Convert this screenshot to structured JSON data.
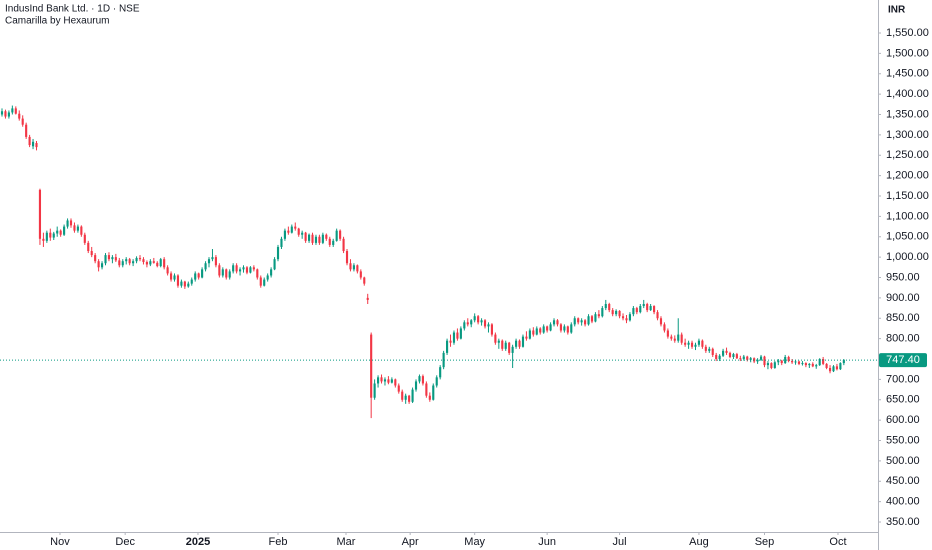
{
  "chart_data": {
    "type": "candlestick",
    "title": "IndusInd Bank Ltd. · 1D · NSE",
    "subtitle": "Camarilla by Hexaurum",
    "currency": "INR",
    "up_color": "#089981",
    "down_color": "#f23645",
    "last_price": {
      "value": 747.4,
      "label": "747.40"
    },
    "ylim": [
      325.5,
      1631
    ],
    "yticks": [
      {
        "value": 350,
        "label": "350.00"
      },
      {
        "value": 400,
        "label": "400.00"
      },
      {
        "value": 450,
        "label": "450.00"
      },
      {
        "value": 500,
        "label": "500.00"
      },
      {
        "value": 550,
        "label": "550.00"
      },
      {
        "value": 600,
        "label": "600.00"
      },
      {
        "value": 650,
        "label": "650.00"
      },
      {
        "value": 700,
        "label": "700.00"
      },
      {
        "value": 750,
        "label": "750.00"
      },
      {
        "value": 800,
        "label": "800.00"
      },
      {
        "value": 850,
        "label": "850.00"
      },
      {
        "value": 900,
        "label": "900.00"
      },
      {
        "value": 950,
        "label": "950.00"
      },
      {
        "value": 1000,
        "label": "1,000.00"
      },
      {
        "value": 1050,
        "label": "1,050.00"
      },
      {
        "value": 1100,
        "label": "1,100.00"
      },
      {
        "value": 1150,
        "label": "1,150.00"
      },
      {
        "value": 1200,
        "label": "1,200.00"
      },
      {
        "value": 1250,
        "label": "1,250.00"
      },
      {
        "value": 1300,
        "label": "1,300.00"
      },
      {
        "value": 1350,
        "label": "1,350.00"
      },
      {
        "value": 1400,
        "label": "1,400.00"
      },
      {
        "value": 1450,
        "label": "1,450.00"
      },
      {
        "value": 1500,
        "label": "1,500.00"
      },
      {
        "value": 1550,
        "label": "1,550.00"
      }
    ],
    "xlim": [
      -0.58,
      253.9
    ],
    "xticks": [
      {
        "value": 16.8,
        "label": "Nov"
      },
      {
        "value": 35.7,
        "label": "Dec"
      },
      {
        "value": 56.8,
        "label": "2025"
      },
      {
        "value": 80,
        "label": "Feb"
      },
      {
        "value": 99.7,
        "label": "Mar"
      },
      {
        "value": 118.3,
        "label": "Apr"
      },
      {
        "value": 137,
        "label": "May"
      },
      {
        "value": 158,
        "label": "Jun"
      },
      {
        "value": 179,
        "label": "Jul"
      },
      {
        "value": 202,
        "label": "Aug"
      },
      {
        "value": 221,
        "label": "Sep"
      },
      {
        "value": 242.3,
        "label": "Oct"
      }
    ],
    "ohlc": [
      [
        1350,
        1365,
        1345,
        1358
      ],
      [
        1358,
        1362,
        1340,
        1345
      ],
      [
        1345,
        1360,
        1340,
        1355
      ],
      [
        1355,
        1372,
        1350,
        1365
      ],
      [
        1365,
        1370,
        1350,
        1352
      ],
      [
        1352,
        1360,
        1335,
        1340
      ],
      [
        1340,
        1348,
        1320,
        1325
      ],
      [
        1325,
        1330,
        1290,
        1295
      ],
      [
        1295,
        1300,
        1270,
        1275
      ],
      [
        1272,
        1290,
        1265,
        1283
      ],
      [
        1280,
        1285,
        1262,
        1270
      ],
      [
        1165,
        1168,
        1030,
        1045
      ],
      [
        1045,
        1060,
        1025,
        1040
      ],
      [
        1040,
        1065,
        1035,
        1060
      ],
      [
        1060,
        1070,
        1040,
        1048
      ],
      [
        1048,
        1062,
        1042,
        1058
      ],
      [
        1058,
        1075,
        1050,
        1065
      ],
      [
        1065,
        1068,
        1050,
        1055
      ],
      [
        1055,
        1080,
        1052,
        1075
      ],
      [
        1075,
        1095,
        1070,
        1090
      ],
      [
        1090,
        1095,
        1072,
        1078
      ],
      [
        1078,
        1085,
        1060,
        1065
      ],
      [
        1065,
        1080,
        1060,
        1075
      ],
      [
        1075,
        1078,
        1050,
        1055
      ],
      [
        1055,
        1060,
        1030,
        1035
      ],
      [
        1035,
        1040,
        1010,
        1015
      ],
      [
        1015,
        1025,
        1000,
        1005
      ],
      [
        1005,
        1010,
        985,
        990
      ],
      [
        990,
        995,
        965,
        975
      ],
      [
        975,
        990,
        970,
        985
      ],
      [
        985,
        1010,
        980,
        1005
      ],
      [
        1005,
        1012,
        990,
        995
      ],
      [
        995,
        1005,
        985,
        1000
      ],
      [
        1000,
        1008,
        988,
        992
      ],
      [
        992,
        998,
        975,
        980
      ],
      [
        980,
        995,
        975,
        990
      ],
      [
        990,
        1000,
        982,
        995
      ],
      [
        995,
        998,
        980,
        985
      ],
      [
        985,
        995,
        978,
        990
      ],
      [
        990,
        1002,
        985,
        998
      ],
      [
        998,
        1005,
        990,
        995
      ],
      [
        995,
        1000,
        982,
        988
      ],
      [
        988,
        992,
        975,
        982
      ],
      [
        982,
        995,
        978,
        990
      ],
      [
        990,
        998,
        984,
        986
      ],
      [
        986,
        990,
        975,
        978
      ],
      [
        978,
        998,
        975,
        995
      ],
      [
        995,
        1000,
        970,
        975
      ],
      [
        975,
        980,
        955,
        960
      ],
      [
        960,
        965,
        940,
        945
      ],
      [
        945,
        960,
        940,
        955
      ],
      [
        955,
        958,
        925,
        930
      ],
      [
        930,
        945,
        925,
        940
      ],
      [
        940,
        942,
        922,
        928
      ],
      [
        928,
        940,
        925,
        935
      ],
      [
        935,
        950,
        930,
        945
      ],
      [
        945,
        965,
        940,
        960
      ],
      [
        960,
        962,
        945,
        950
      ],
      [
        950,
        975,
        948,
        970
      ],
      [
        970,
        990,
        965,
        985
      ],
      [
        985,
        1000,
        975,
        995
      ],
      [
        995,
        1020,
        990,
        1000
      ],
      [
        1000,
        1005,
        975,
        980
      ],
      [
        980,
        985,
        950,
        955
      ],
      [
        955,
        975,
        950,
        970
      ],
      [
        970,
        972,
        945,
        950
      ],
      [
        950,
        970,
        945,
        965
      ],
      [
        965,
        985,
        960,
        980
      ],
      [
        980,
        985,
        960,
        965
      ],
      [
        965,
        975,
        955,
        970
      ],
      [
        970,
        980,
        962,
        975
      ],
      [
        975,
        978,
        958,
        962
      ],
      [
        962,
        978,
        960,
        975
      ],
      [
        975,
        980,
        965,
        970
      ],
      [
        970,
        972,
        945,
        950
      ],
      [
        950,
        955,
        925,
        930
      ],
      [
        930,
        950,
        928,
        945
      ],
      [
        945,
        960,
        940,
        955
      ],
      [
        955,
        975,
        950,
        970
      ],
      [
        970,
        1000,
        968,
        995
      ],
      [
        995,
        1030,
        990,
        1025
      ],
      [
        1025,
        1050,
        1020,
        1045
      ],
      [
        1045,
        1070,
        1040,
        1065
      ],
      [
        1065,
        1075,
        1055,
        1060
      ],
      [
        1060,
        1080,
        1058,
        1075
      ],
      [
        1075,
        1085,
        1065,
        1070
      ],
      [
        1070,
        1072,
        1050,
        1055
      ],
      [
        1055,
        1065,
        1045,
        1060
      ],
      [
        1060,
        1062,
        1035,
        1040
      ],
      [
        1040,
        1058,
        1035,
        1055
      ],
      [
        1055,
        1060,
        1030,
        1035
      ],
      [
        1035,
        1055,
        1030,
        1050
      ],
      [
        1050,
        1055,
        1030,
        1035
      ],
      [
        1035,
        1060,
        1032,
        1055
      ],
      [
        1055,
        1058,
        1040,
        1045
      ],
      [
        1045,
        1050,
        1025,
        1030
      ],
      [
        1030,
        1045,
        1025,
        1040
      ],
      [
        1040,
        1070,
        1038,
        1065
      ],
      [
        1065,
        1068,
        1040,
        1045
      ],
      [
        1045,
        1050,
        1010,
        1015
      ],
      [
        1015,
        1020,
        980,
        985
      ],
      [
        985,
        995,
        965,
        970
      ],
      [
        970,
        985,
        965,
        980
      ],
      [
        980,
        982,
        960,
        965
      ],
      [
        965,
        970,
        945,
        950
      ],
      [
        950,
        952,
        930,
        935
      ],
      [
        900,
        910,
        885,
        895
      ],
      [
        810,
        815,
        605,
        655
      ],
      [
        655,
        700,
        650,
        690
      ],
      [
        690,
        710,
        680,
        705
      ],
      [
        705,
        712,
        690,
        695
      ],
      [
        695,
        705,
        685,
        700
      ],
      [
        700,
        708,
        688,
        692
      ],
      [
        692,
        705,
        690,
        700
      ],
      [
        700,
        702,
        680,
        685
      ],
      [
        685,
        690,
        665,
        670
      ],
      [
        670,
        675,
        645,
        650
      ],
      [
        650,
        665,
        640,
        660
      ],
      [
        660,
        662,
        640,
        645
      ],
      [
        645,
        680,
        642,
        675
      ],
      [
        675,
        700,
        670,
        695
      ],
      [
        695,
        712,
        690,
        708
      ],
      [
        708,
        712,
        685,
        690
      ],
      [
        690,
        695,
        655,
        660
      ],
      [
        660,
        668,
        645,
        650
      ],
      [
        650,
        690,
        648,
        685
      ],
      [
        685,
        710,
        680,
        705
      ],
      [
        705,
        735,
        700,
        730
      ],
      [
        730,
        770,
        725,
        765
      ],
      [
        765,
        800,
        760,
        795
      ],
      [
        795,
        810,
        780,
        790
      ],
      [
        790,
        820,
        785,
        815
      ],
      [
        815,
        825,
        795,
        800
      ],
      [
        800,
        830,
        798,
        825
      ],
      [
        825,
        845,
        820,
        840
      ],
      [
        840,
        850,
        830,
        835
      ],
      [
        835,
        848,
        828,
        845
      ],
      [
        845,
        862,
        840,
        855
      ],
      [
        855,
        858,
        835,
        840
      ],
      [
        840,
        850,
        832,
        845
      ],
      [
        845,
        848,
        825,
        830
      ],
      [
        830,
        840,
        815,
        835
      ],
      [
        835,
        838,
        805,
        810
      ],
      [
        810,
        815,
        785,
        790
      ],
      [
        790,
        800,
        775,
        795
      ],
      [
        795,
        798,
        770,
        775
      ],
      [
        775,
        795,
        770,
        790
      ],
      [
        790,
        792,
        760,
        765
      ],
      [
        765,
        785,
        728,
        780
      ],
      [
        780,
        800,
        775,
        795
      ],
      [
        795,
        798,
        775,
        780
      ],
      [
        780,
        810,
        778,
        805
      ],
      [
        805,
        818,
        795,
        800
      ],
      [
        800,
        825,
        798,
        820
      ],
      [
        820,
        828,
        805,
        810
      ],
      [
        810,
        830,
        808,
        825
      ],
      [
        825,
        828,
        810,
        815
      ],
      [
        815,
        835,
        812,
        830
      ],
      [
        830,
        832,
        815,
        820
      ],
      [
        820,
        840,
        818,
        835
      ],
      [
        835,
        850,
        830,
        845
      ],
      [
        845,
        848,
        830,
        835
      ],
      [
        835,
        838,
        815,
        820
      ],
      [
        820,
        835,
        815,
        830
      ],
      [
        830,
        832,
        810,
        815
      ],
      [
        815,
        840,
        812,
        835
      ],
      [
        835,
        855,
        830,
        850
      ],
      [
        850,
        852,
        835,
        840
      ],
      [
        840,
        850,
        832,
        845
      ],
      [
        845,
        848,
        830,
        835
      ],
      [
        835,
        860,
        832,
        855
      ],
      [
        855,
        858,
        838,
        842
      ],
      [
        842,
        865,
        840,
        860
      ],
      [
        860,
        870,
        850,
        855
      ],
      [
        855,
        880,
        852,
        875
      ],
      [
        875,
        895,
        870,
        885
      ],
      [
        885,
        888,
        865,
        870
      ],
      [
        870,
        875,
        855,
        860
      ],
      [
        860,
        872,
        855,
        868
      ],
      [
        868,
        870,
        850,
        855
      ],
      [
        855,
        862,
        845,
        850
      ],
      [
        850,
        858,
        838,
        845
      ],
      [
        845,
        865,
        842,
        860
      ],
      [
        860,
        880,
        855,
        875
      ],
      [
        875,
        878,
        860,
        865
      ],
      [
        865,
        885,
        862,
        880
      ],
      [
        880,
        895,
        875,
        885
      ],
      [
        885,
        888,
        865,
        870
      ],
      [
        870,
        885,
        868,
        880
      ],
      [
        880,
        882,
        860,
        865
      ],
      [
        865,
        870,
        845,
        850
      ],
      [
        850,
        855,
        830,
        835
      ],
      [
        835,
        840,
        815,
        820
      ],
      [
        820,
        825,
        800,
        805
      ],
      [
        805,
        810,
        795,
        800
      ],
      [
        800,
        808,
        790,
        795
      ],
      [
        795,
        850,
        790,
        810
      ],
      [
        810,
        815,
        785,
        790
      ],
      [
        790,
        800,
        780,
        785
      ],
      [
        785,
        795,
        775,
        790
      ],
      [
        790,
        795,
        775,
        780
      ],
      [
        780,
        790,
        772,
        785
      ],
      [
        785,
        800,
        780,
        795
      ],
      [
        795,
        798,
        775,
        780
      ],
      [
        780,
        785,
        765,
        770
      ],
      [
        770,
        780,
        765,
        775
      ],
      [
        775,
        778,
        755,
        760
      ],
      [
        760,
        765,
        745,
        750
      ],
      [
        750,
        762,
        745,
        758
      ],
      [
        758,
        775,
        755,
        770
      ],
      [
        770,
        778,
        760,
        765
      ],
      [
        765,
        768,
        752,
        755
      ],
      [
        755,
        765,
        750,
        762
      ],
      [
        762,
        765,
        750,
        752
      ],
      [
        752,
        758,
        745,
        750
      ],
      [
        750,
        760,
        746,
        756
      ],
      [
        756,
        758,
        744,
        748
      ],
      [
        748,
        755,
        742,
        752
      ],
      [
        752,
        754,
        740,
        744
      ],
      [
        744,
        752,
        738,
        748
      ],
      [
        748,
        760,
        745,
        756
      ],
      [
        756,
        758,
        730,
        735
      ],
      [
        735,
        745,
        725,
        740
      ],
      [
        740,
        742,
        725,
        728
      ],
      [
        728,
        745,
        726,
        742
      ],
      [
        742,
        750,
        735,
        746
      ],
      [
        746,
        748,
        735,
        740
      ],
      [
        740,
        760,
        738,
        755
      ],
      [
        755,
        758,
        742,
        745
      ],
      [
        745,
        750,
        738,
        742
      ],
      [
        742,
        748,
        736,
        744
      ],
      [
        744,
        746,
        735,
        738
      ],
      [
        738,
        745,
        734,
        740
      ],
      [
        740,
        742,
        730,
        735
      ],
      [
        735,
        740,
        728,
        738
      ],
      [
        738,
        742,
        730,
        732
      ],
      [
        732,
        738,
        726,
        735
      ],
      [
        735,
        752,
        733,
        750
      ],
      [
        750,
        755,
        735,
        738
      ],
      [
        738,
        740,
        725,
        728
      ],
      [
        728,
        735,
        715,
        720
      ],
      [
        720,
        735,
        718,
        732
      ],
      [
        732,
        738,
        722,
        725
      ],
      [
        725,
        742,
        723,
        740
      ],
      [
        740,
        750,
        735,
        747.4
      ]
    ]
  }
}
